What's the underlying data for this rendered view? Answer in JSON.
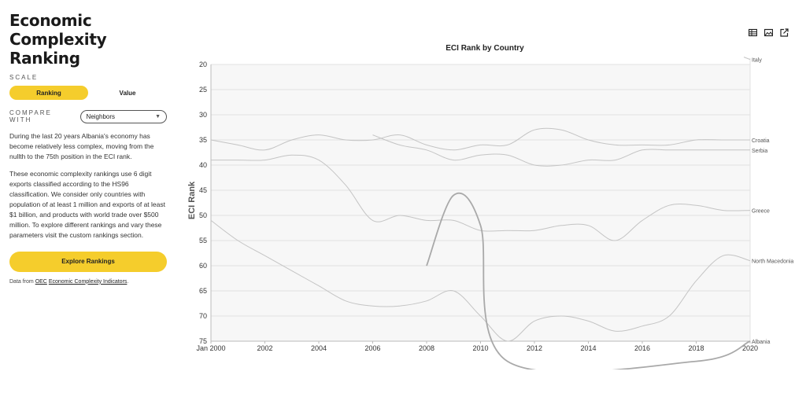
{
  "sidebar": {
    "title": "Economic Complexity Ranking",
    "scale_label": "SCALE",
    "scale_options": [
      "Ranking",
      "Value"
    ],
    "compare_label": "COMPARE WITH",
    "compare_value": "Neighbors",
    "paragraph1": "During the last 20 years Albania's economy has become relatively less complex, moving from the nullth to the 75th position in the ECI rank.",
    "paragraph2": "These economic complexity rankings use 6 digit exports classified according to the HS96 classification. We consider only countries with population of at least 1 million and exports of at least $1 billion, and products with world trade over $500 million. To explore different rankings and vary these parameters visit the custom rankings section.",
    "explore_label": "Explore Rankings",
    "source_prefix": "Data from ",
    "source_link1": "OEC",
    "source_link2": "Economic Complexity Indicators",
    "source_suffix": "."
  },
  "toolbar": {
    "icons": [
      "table-icon",
      "image-icon",
      "share-icon"
    ]
  },
  "chart_data": {
    "type": "line",
    "title": "ECI Rank by Country",
    "ylabel": "ECI Rank",
    "xlabel": "",
    "xlim": [
      2000,
      2020
    ],
    "ylim": [
      20,
      75
    ],
    "y_inverted": true,
    "x_tick_labels": [
      "Jan 2000",
      "2002",
      "2004",
      "2006",
      "2008",
      "2010",
      "2012",
      "2014",
      "2016",
      "2018",
      "2020"
    ],
    "y_ticks": [
      20,
      25,
      30,
      35,
      40,
      45,
      50,
      55,
      60,
      65,
      70,
      75
    ],
    "grid": true,
    "series": [
      {
        "name": "Italy",
        "color": "#c4c4c4",
        "width": 1,
        "x": [
          2020
        ],
        "y": [
          19
        ]
      },
      {
        "name": "Croatia",
        "color": "#c4c4c4",
        "width": 1,
        "x": [
          2000,
          2001,
          2002,
          2003,
          2004,
          2005,
          2006,
          2007,
          2008,
          2009,
          2010,
          2011,
          2012,
          2013,
          2014,
          2015,
          2016,
          2017,
          2018,
          2019,
          2020
        ],
        "y": [
          35,
          36,
          37,
          35,
          34,
          35,
          35,
          34,
          36,
          37,
          36,
          36,
          33,
          33,
          35,
          36,
          36,
          36,
          35,
          35,
          35
        ]
      },
      {
        "name": "Serbia",
        "color": "#c4c4c4",
        "width": 1,
        "x": [
          2006,
          2007,
          2008,
          2009,
          2010,
          2011,
          2012,
          2013,
          2014,
          2015,
          2016,
          2017,
          2018,
          2019,
          2020
        ],
        "y": [
          34,
          36,
          37,
          39,
          38,
          38,
          40,
          40,
          39,
          39,
          37,
          37,
          37,
          37,
          37
        ]
      },
      {
        "name": "Greece",
        "color": "#c4c4c4",
        "width": 1,
        "x": [
          2000,
          2001,
          2002,
          2003,
          2004,
          2005,
          2006,
          2007,
          2008,
          2009,
          2010,
          2011,
          2012,
          2013,
          2014,
          2015,
          2016,
          2017,
          2018,
          2019,
          2020
        ],
        "y": [
          39,
          39,
          39,
          38,
          39,
          44,
          51,
          50,
          51,
          51,
          53,
          53,
          53,
          52,
          52,
          55,
          51,
          48,
          48,
          49,
          49
        ]
      },
      {
        "name": "North Macedonia",
        "color": "#c4c4c4",
        "width": 1,
        "x": [
          2000,
          2001,
          2002,
          2003,
          2004,
          2005,
          2006,
          2007,
          2008,
          2009,
          2010,
          2011,
          2012,
          2013,
          2014,
          2015,
          2016,
          2017,
          2018,
          2019,
          2020
        ],
        "y": [
          51,
          55,
          58,
          61,
          64,
          67,
          68,
          68,
          67,
          65,
          70,
          75,
          71,
          70,
          71,
          73,
          72,
          70,
          63,
          58,
          59
        ]
      },
      {
        "name": "Albania",
        "color": "#a9a9a9",
        "width": 1.8,
        "x": [
          2008,
          2009,
          2010,
          2011,
          2018,
          2020
        ],
        "y": [
          60,
          46,
          52,
          79,
          79,
          75
        ]
      }
    ]
  }
}
